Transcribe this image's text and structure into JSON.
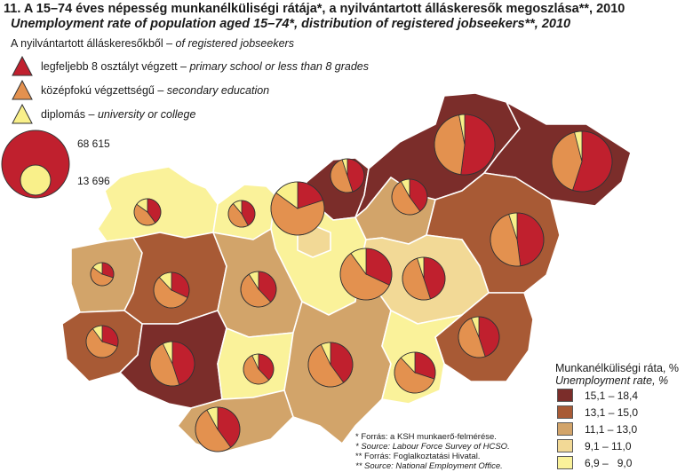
{
  "title": {
    "hu": "11. A 15–74 éves népesség munkanélküliségi rátája*, a nyilvántartott álláskeresők megoszlása**, 2010",
    "en": "Unemployment rate of population aged 15–74*, distribution of registered jobseekers**, 2010"
  },
  "legend": {
    "heading_hu": "A nyilvántartott álláskeresőkből",
    "heading_en": "of registered jobseekers",
    "items": [
      {
        "label_hu": "legfeljebb 8 osztályt végzett",
        "label_en": "primary school or less than 8 grades",
        "color": "#c0202e"
      },
      {
        "label_hu": "középfokú végzettségű",
        "label_en": "secondary education",
        "color": "#e3914f"
      },
      {
        "label_hu": "diplomás",
        "label_en": "university or college",
        "color": "#f9f08a"
      }
    ],
    "size_max": "68 615",
    "size_min": "13 696"
  },
  "classes": {
    "title_hu": "Munkanélküliségi ráta, %",
    "title_en": "Unemployment rate, %",
    "items": [
      {
        "label": "15,1 – 18,4",
        "color": "#7b2d2a"
      },
      {
        "label": "13,1 – 15,0",
        "color": "#a85a35"
      },
      {
        "label": "11,1 – 13,0",
        "color": "#d2a46a"
      },
      {
        "label": "9,1 – 11,0",
        "color": "#f2d996"
      },
      {
        "label": "6,9 –   9,0",
        "color": "#faf29a"
      }
    ]
  },
  "sources": [
    {
      "text": "*  Forrás: a KSH munkaerő-felmérése."
    },
    {
      "text": "*  Source: Labour Force Survey of HCSO.",
      "italic": true
    },
    {
      "text": "** Forrás: Foglalkoztatási Hivatal."
    },
    {
      "text": "** Source: National Employment Office.",
      "italic": true
    }
  ],
  "pies": [
    {
      "id": "gyor",
      "shares": [
        0.4,
        0.45,
        0.15
      ]
    },
    {
      "id": "komarom",
      "shares": [
        0.42,
        0.47,
        0.11
      ]
    },
    {
      "id": "budapest",
      "shares": [
        0.2,
        0.65,
        0.15
      ]
    },
    {
      "id": "nograd",
      "shares": [
        0.45,
        0.5,
        0.05
      ]
    },
    {
      "id": "borsod",
      "shares": [
        0.52,
        0.45,
        0.03
      ]
    },
    {
      "id": "heves",
      "shares": [
        0.4,
        0.52,
        0.08
      ]
    },
    {
      "id": "szabolcs",
      "shares": [
        0.55,
        0.41,
        0.04
      ]
    },
    {
      "id": "vas",
      "shares": [
        0.3,
        0.55,
        0.15
      ]
    },
    {
      "id": "veszprem",
      "shares": [
        0.32,
        0.56,
        0.12
      ]
    },
    {
      "id": "fejer",
      "shares": [
        0.38,
        0.53,
        0.09
      ]
    },
    {
      "id": "pest",
      "shares": [
        0.32,
        0.58,
        0.1
      ]
    },
    {
      "id": "jasz",
      "shares": [
        0.45,
        0.5,
        0.05
      ]
    },
    {
      "id": "hajdu",
      "shares": [
        0.48,
        0.47,
        0.05
      ]
    },
    {
      "id": "zala",
      "shares": [
        0.3,
        0.6,
        0.1
      ]
    },
    {
      "id": "somogy",
      "shares": [
        0.45,
        0.48,
        0.07
      ]
    },
    {
      "id": "tolna",
      "shares": [
        0.38,
        0.55,
        0.07
      ]
    },
    {
      "id": "bacs",
      "shares": [
        0.4,
        0.53,
        0.07
      ]
    },
    {
      "id": "bekes",
      "shares": [
        0.45,
        0.49,
        0.06
      ]
    },
    {
      "id": "csongrad",
      "shares": [
        0.3,
        0.58,
        0.12
      ]
    },
    {
      "id": "baranya",
      "shares": [
        0.4,
        0.52,
        0.08
      ]
    }
  ]
}
